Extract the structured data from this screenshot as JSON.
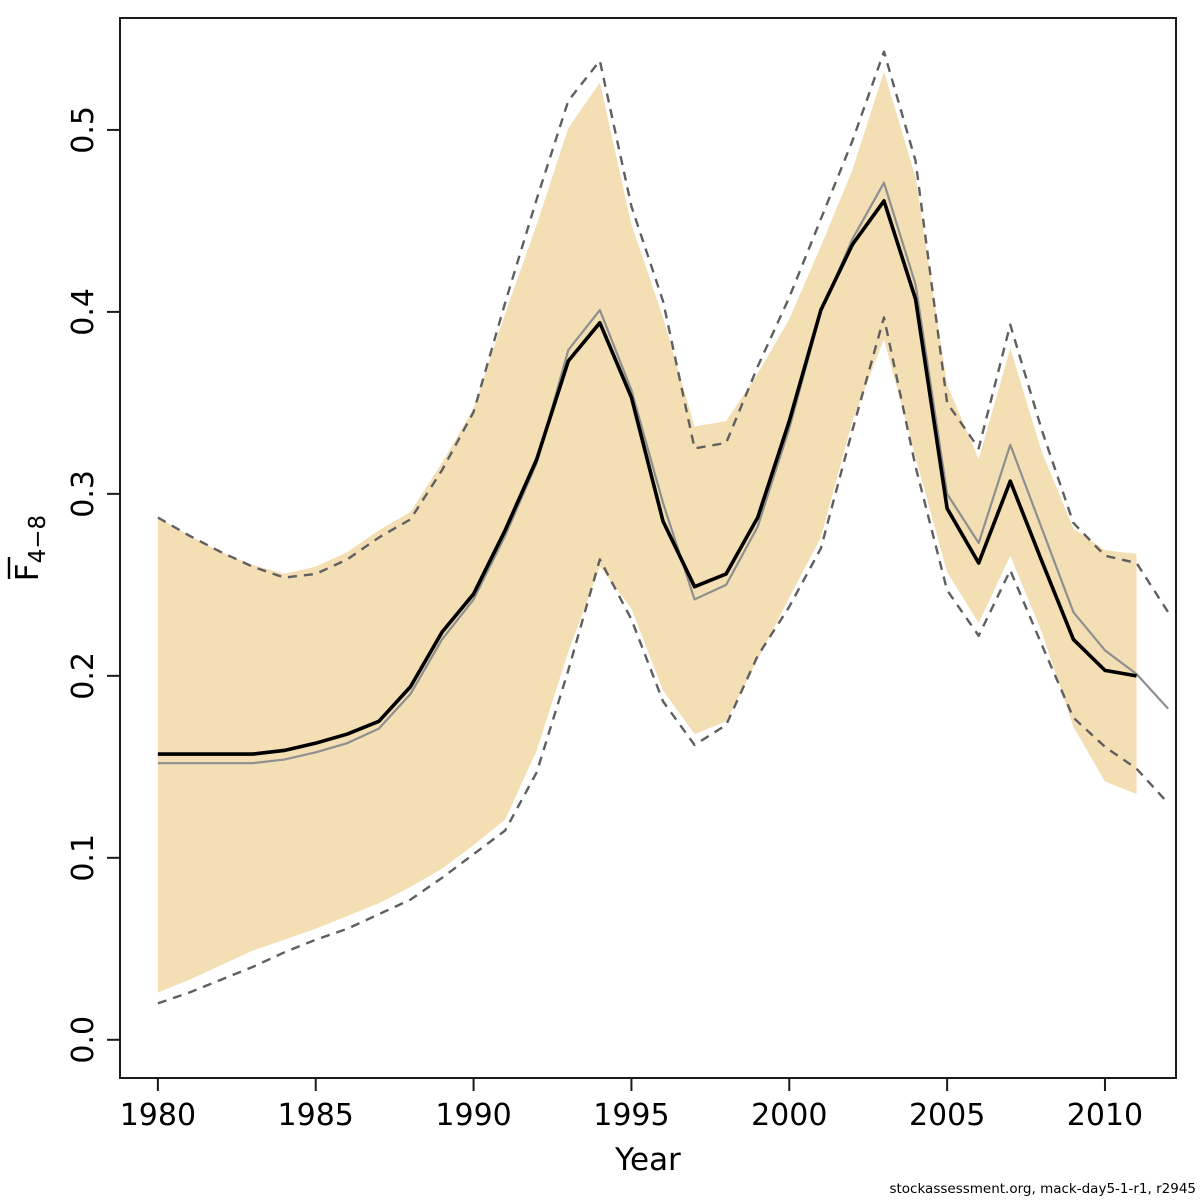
{
  "figure": {
    "footer": "stockassessment.org, mack-day5-1-r1, r2945",
    "background": "#ffffff"
  },
  "colors": {
    "band_fill": "#F4DEB3",
    "dashed_ci": "#5f5f5f",
    "comparison_line": "#8f8f8f",
    "estimate_line": "#000000",
    "axis": "#1a1a1a",
    "tick_text": "#000000"
  },
  "chart_data": {
    "type": "line",
    "title": "",
    "xlabel": "Year",
    "ylabel_main": "F",
    "ylabel_sub": "4−8",
    "ylabel_overline": true,
    "grid": "off",
    "legend": "none",
    "xlim": [
      1978.8,
      2012.25
    ],
    "ylim": [
      -0.021,
      0.5615
    ],
    "x_ticks": [
      1980,
      1985,
      1990,
      1995,
      2000,
      2005,
      2010
    ],
    "x_tick_labels": [
      "1980",
      "1985",
      "1990",
      "1995",
      "2000",
      "2005",
      "2010"
    ],
    "y_ticks": [
      0.0,
      0.1,
      0.2,
      0.3,
      0.4,
      0.5
    ],
    "y_tick_labels": [
      "0.0",
      "0.1",
      "0.2",
      "0.3",
      "0.4",
      "0.5"
    ],
    "band": {
      "name": "confidence-band",
      "fill_key": "band_fill",
      "years": [
        1980,
        1981,
        1982,
        1983,
        1984,
        1985,
        1986,
        1987,
        1988,
        1989,
        1990,
        1991,
        1992,
        1993,
        1994,
        1995,
        1996,
        1997,
        1998,
        1999,
        2000,
        2001,
        2002,
        2003,
        2004,
        2005,
        2006,
        2007,
        2008,
        2009,
        2010,
        2011
      ],
      "upper": [
        0.287,
        0.277,
        0.268,
        0.261,
        0.256,
        0.26,
        0.268,
        0.28,
        0.29,
        0.317,
        0.347,
        0.399,
        0.448,
        0.501,
        0.526,
        0.448,
        0.397,
        0.337,
        0.34,
        0.366,
        0.396,
        0.436,
        0.478,
        0.532,
        0.474,
        0.36,
        0.319,
        0.38,
        0.323,
        0.281,
        0.269,
        0.267
      ],
      "lower": [
        0.026,
        0.033,
        0.041,
        0.049,
        0.055,
        0.061,
        0.068,
        0.075,
        0.084,
        0.094,
        0.107,
        0.121,
        0.159,
        0.213,
        0.26,
        0.237,
        0.192,
        0.168,
        0.175,
        0.209,
        0.243,
        0.276,
        0.34,
        0.385,
        0.32,
        0.257,
        0.229,
        0.266,
        0.224,
        0.172,
        0.142,
        0.135
      ]
    },
    "series": [
      {
        "name": "ci-upper-dashed",
        "color_key": "dashed_ci",
        "dashed": true,
        "width": 2.4,
        "years": [
          1980,
          1981,
          1982,
          1983,
          1984,
          1985,
          1986,
          1987,
          1988,
          1989,
          1990,
          1991,
          1992,
          1993,
          1994,
          1995,
          1996,
          1997,
          1998,
          1999,
          2000,
          2001,
          2002,
          2003,
          2004,
          2005,
          2006,
          2007,
          2008,
          2009,
          2010,
          2011,
          2012
        ],
        "values": [
          0.287,
          0.277,
          0.268,
          0.26,
          0.254,
          0.256,
          0.264,
          0.276,
          0.286,
          0.313,
          0.345,
          0.405,
          0.462,
          0.516,
          0.538,
          0.458,
          0.406,
          0.325,
          0.328,
          0.37,
          0.408,
          0.451,
          0.494,
          0.543,
          0.483,
          0.35,
          0.325,
          0.393,
          0.335,
          0.284,
          0.266,
          0.262,
          0.235
        ]
      },
      {
        "name": "ci-lower-dashed",
        "color_key": "dashed_ci",
        "dashed": true,
        "width": 2.4,
        "years": [
          1980,
          1981,
          1982,
          1983,
          1984,
          1985,
          1986,
          1987,
          1988,
          1989,
          1990,
          1991,
          1992,
          1993,
          1994,
          1995,
          1996,
          1997,
          1998,
          1999,
          2000,
          2001,
          2002,
          2003,
          2004,
          2005,
          2006,
          2007,
          2008,
          2009,
          2010,
          2011,
          2012
        ],
        "values": [
          0.02,
          0.026,
          0.033,
          0.04,
          0.048,
          0.055,
          0.061,
          0.069,
          0.077,
          0.089,
          0.102,
          0.115,
          0.147,
          0.203,
          0.264,
          0.231,
          0.186,
          0.162,
          0.173,
          0.211,
          0.238,
          0.27,
          0.335,
          0.397,
          0.315,
          0.247,
          0.222,
          0.258,
          0.217,
          0.177,
          0.161,
          0.149,
          0.13
        ]
      },
      {
        "name": "comparison-run-line",
        "color_key": "comparison_line",
        "dashed": false,
        "width": 2.2,
        "years": [
          1980,
          1981,
          1982,
          1983,
          1984,
          1985,
          1986,
          1987,
          1988,
          1989,
          1990,
          1991,
          1992,
          1993,
          1994,
          1995,
          1996,
          1997,
          1998,
          1999,
          2000,
          2001,
          2002,
          2003,
          2004,
          2005,
          2006,
          2007,
          2008,
          2009,
          2010,
          2011,
          2012
        ],
        "values": [
          0.152,
          0.152,
          0.152,
          0.152,
          0.154,
          0.158,
          0.163,
          0.171,
          0.19,
          0.22,
          0.242,
          0.277,
          0.317,
          0.379,
          0.401,
          0.357,
          0.295,
          0.242,
          0.25,
          0.282,
          0.336,
          0.4,
          0.44,
          0.471,
          0.415,
          0.3,
          0.273,
          0.327,
          0.281,
          0.235,
          0.214,
          0.201,
          0.182
        ]
      },
      {
        "name": "estimate-line",
        "color_key": "estimate_line",
        "dashed": false,
        "width": 3.6,
        "years": [
          1980,
          1981,
          1982,
          1983,
          1984,
          1985,
          1986,
          1987,
          1988,
          1989,
          1990,
          1991,
          1992,
          1993,
          1994,
          1995,
          1996,
          1997,
          1998,
          1999,
          2000,
          2001,
          2002,
          2003,
          2004,
          2005,
          2006,
          2007,
          2008,
          2009,
          2010,
          2011
        ],
        "values": [
          0.157,
          0.157,
          0.157,
          0.157,
          0.159,
          0.163,
          0.168,
          0.175,
          0.194,
          0.224,
          0.245,
          0.28,
          0.319,
          0.373,
          0.394,
          0.353,
          0.285,
          0.249,
          0.256,
          0.287,
          0.34,
          0.401,
          0.437,
          0.461,
          0.407,
          0.292,
          0.262,
          0.307,
          0.263,
          0.22,
          0.203,
          0.2
        ]
      }
    ]
  }
}
